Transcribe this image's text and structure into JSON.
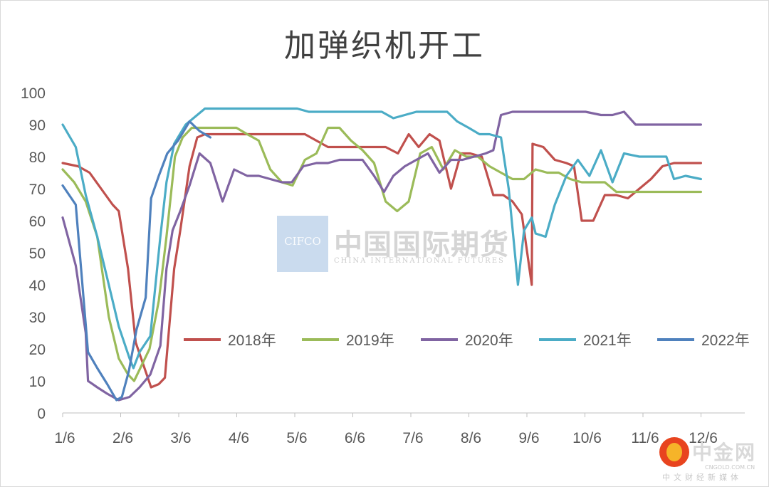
{
  "page": {
    "watermark": {
      "latin": "CIFCO",
      "chinese": "中国国际期货",
      "english": "CHINA INTERNATIONAL FUTURES"
    },
    "corner_logo": {
      "name": "中金网",
      "url": "CNGOLD.COM.CN",
      "tagline": "中文财经新媒体"
    }
  },
  "chart_data": {
    "type": "line",
    "title": "加弹织机开工",
    "xlabel": "",
    "ylabel": "",
    "x_ticks": [
      "1/6",
      "2/6",
      "3/6",
      "4/6",
      "5/6",
      "6/6",
      "7/6",
      "8/6",
      "9/6",
      "10/6",
      "11/6",
      "12/6"
    ],
    "y_ticks": [
      0,
      10,
      20,
      30,
      40,
      50,
      60,
      70,
      80,
      90,
      100
    ],
    "ylim": [
      0,
      100
    ],
    "x_unit": "week index (1/6 = week 0, one week per step)",
    "grid": false,
    "legend": {
      "position": "inside-lower-right"
    },
    "series": [
      {
        "name": "2018年",
        "color": "#c0504d",
        "values": [
          [
            0,
            78
          ],
          [
            2,
            77
          ],
          [
            3.5,
            75
          ],
          [
            5,
            70
          ],
          [
            6.5,
            65
          ],
          [
            7.3,
            63
          ],
          [
            8.5,
            45
          ],
          [
            9.5,
            22
          ],
          [
            10.5,
            15
          ],
          [
            11.5,
            8
          ],
          [
            12.5,
            9
          ],
          [
            13.3,
            11
          ],
          [
            14.5,
            45
          ],
          [
            15.3,
            57
          ],
          [
            16.5,
            77
          ],
          [
            17.5,
            86
          ],
          [
            18.5,
            87
          ],
          [
            19.5,
            87
          ],
          [
            20.5,
            87
          ],
          [
            22,
            87
          ],
          [
            24,
            87
          ],
          [
            26,
            87
          ],
          [
            28,
            87
          ],
          [
            30,
            87
          ],
          [
            31.5,
            87
          ],
          [
            33,
            85
          ],
          [
            34.5,
            83
          ],
          [
            36,
            83
          ],
          [
            38,
            83
          ],
          [
            40,
            83
          ],
          [
            42,
            83
          ],
          [
            43.6,
            81
          ],
          [
            45,
            87
          ],
          [
            46.3,
            83
          ],
          [
            47.7,
            87
          ],
          [
            49,
            85
          ],
          [
            50.5,
            70
          ],
          [
            51.8,
            81
          ],
          [
            53,
            81
          ],
          [
            54.5,
            80
          ],
          [
            56,
            68
          ],
          [
            57.3,
            68
          ],
          [
            58.5,
            66
          ],
          [
            59.7,
            62
          ],
          [
            61,
            40
          ],
          [
            61.1,
            84
          ],
          [
            62.5,
            83
          ],
          [
            64,
            79
          ],
          [
            65.5,
            78
          ],
          [
            66.5,
            77
          ],
          [
            67.5,
            60
          ],
          [
            69,
            60
          ],
          [
            70.5,
            68
          ],
          [
            72,
            68
          ],
          [
            73.5,
            67
          ],
          [
            75,
            70
          ],
          [
            76.5,
            73
          ],
          [
            78,
            77
          ],
          [
            79.5,
            78
          ],
          [
            81,
            78
          ],
          [
            83,
            78
          ]
        ]
      },
      {
        "name": "2019年",
        "color": "#9bbb59",
        "values": [
          [
            0,
            76
          ],
          [
            1.5,
            72
          ],
          [
            3,
            66
          ],
          [
            4.5,
            55
          ],
          [
            6,
            30
          ],
          [
            7.3,
            17
          ],
          [
            8.5,
            12
          ],
          [
            9.3,
            10
          ],
          [
            10.3,
            15
          ],
          [
            11.3,
            20
          ],
          [
            12.5,
            35
          ],
          [
            13.5,
            55
          ],
          [
            14.6,
            80
          ],
          [
            15.6,
            86
          ],
          [
            16.8,
            89
          ],
          [
            18,
            89
          ],
          [
            19.5,
            89
          ],
          [
            21,
            89
          ],
          [
            22.6,
            89
          ],
          [
            24,
            87
          ],
          [
            25.5,
            85
          ],
          [
            27,
            76
          ],
          [
            28.5,
            72
          ],
          [
            29.9,
            71
          ],
          [
            31.5,
            79
          ],
          [
            33,
            81
          ],
          [
            34.5,
            89
          ],
          [
            36,
            89
          ],
          [
            37.5,
            85
          ],
          [
            39,
            82
          ],
          [
            40.5,
            78
          ],
          [
            42,
            66
          ],
          [
            43.5,
            63
          ],
          [
            45,
            66
          ],
          [
            46.5,
            81
          ],
          [
            48,
            83
          ],
          [
            49.5,
            76
          ],
          [
            51,
            82
          ],
          [
            52.5,
            80
          ],
          [
            54,
            80
          ],
          [
            55.5,
            77
          ],
          [
            57,
            75
          ],
          [
            58.5,
            73
          ],
          [
            60,
            73
          ],
          [
            61.5,
            76
          ],
          [
            63,
            75
          ],
          [
            64.5,
            75
          ],
          [
            66,
            73
          ],
          [
            67.5,
            72
          ],
          [
            69,
            72
          ],
          [
            70.5,
            72
          ],
          [
            72,
            69
          ],
          [
            74,
            69
          ],
          [
            76,
            69
          ],
          [
            78,
            69
          ],
          [
            80,
            69
          ],
          [
            83,
            69
          ]
        ]
      },
      {
        "name": "2020年",
        "color": "#8064a2",
        "values": [
          [
            0,
            61
          ],
          [
            1.7,
            46
          ],
          [
            3,
            25
          ],
          [
            3.3,
            10
          ],
          [
            4.5,
            8
          ],
          [
            5.8,
            6
          ],
          [
            7.3,
            4
          ],
          [
            8.7,
            5
          ],
          [
            10,
            8
          ],
          [
            11.4,
            12
          ],
          [
            12.7,
            21
          ],
          [
            13.5,
            45
          ],
          [
            14.3,
            57
          ],
          [
            15.3,
            63
          ],
          [
            16.5,
            71
          ],
          [
            17.8,
            81
          ],
          [
            19.2,
            78
          ],
          [
            20.8,
            66
          ],
          [
            22.3,
            76
          ],
          [
            24,
            74
          ],
          [
            25.5,
            74
          ],
          [
            27,
            73
          ],
          [
            28.5,
            72
          ],
          [
            29.8,
            72
          ],
          [
            31.3,
            77
          ],
          [
            33,
            78
          ],
          [
            34.5,
            78
          ],
          [
            36,
            79
          ],
          [
            37.5,
            79
          ],
          [
            39,
            79
          ],
          [
            40.5,
            74
          ],
          [
            41.8,
            69
          ],
          [
            43,
            74
          ],
          [
            44.5,
            77
          ],
          [
            46,
            79
          ],
          [
            47.5,
            81
          ],
          [
            49,
            75
          ],
          [
            50.5,
            79
          ],
          [
            52,
            79
          ],
          [
            53.5,
            80
          ],
          [
            55,
            81
          ],
          [
            56,
            82
          ],
          [
            57,
            93
          ],
          [
            58.5,
            94
          ],
          [
            60,
            94
          ],
          [
            62,
            94
          ],
          [
            64,
            94
          ],
          [
            66,
            94
          ],
          [
            68,
            94
          ],
          [
            70,
            93
          ],
          [
            71.5,
            93
          ],
          [
            73,
            94
          ],
          [
            74.5,
            90
          ],
          [
            76,
            90
          ],
          [
            78,
            90
          ],
          [
            80,
            90
          ],
          [
            83,
            90
          ]
        ]
      },
      {
        "name": "2021年",
        "color": "#4bacc6",
        "values": [
          [
            0,
            90
          ],
          [
            1.7,
            83
          ],
          [
            3,
            68
          ],
          [
            4.5,
            55
          ],
          [
            6,
            40
          ],
          [
            7.3,
            27
          ],
          [
            8.7,
            17
          ],
          [
            9.2,
            14
          ],
          [
            10,
            19
          ],
          [
            11.4,
            24
          ],
          [
            12.7,
            55
          ],
          [
            13.5,
            72
          ],
          [
            14.5,
            84
          ],
          [
            16,
            90
          ],
          [
            17.5,
            93
          ],
          [
            18.5,
            95
          ],
          [
            20,
            95
          ],
          [
            22,
            95
          ],
          [
            24,
            95
          ],
          [
            26,
            95
          ],
          [
            28,
            95
          ],
          [
            30.5,
            95
          ],
          [
            32,
            94
          ],
          [
            34,
            94
          ],
          [
            36,
            94
          ],
          [
            38,
            94
          ],
          [
            40,
            94
          ],
          [
            41.5,
            94
          ],
          [
            43,
            92
          ],
          [
            44.5,
            93
          ],
          [
            46,
            94
          ],
          [
            48,
            94
          ],
          [
            50,
            94
          ],
          [
            51.3,
            91
          ],
          [
            52.8,
            89
          ],
          [
            54.2,
            87
          ],
          [
            55.5,
            87
          ],
          [
            57,
            86
          ],
          [
            58,
            70
          ],
          [
            59.2,
            40
          ],
          [
            60,
            57
          ],
          [
            61,
            61
          ],
          [
            61.5,
            56
          ],
          [
            62.8,
            55
          ],
          [
            64,
            65
          ],
          [
            65.5,
            74
          ],
          [
            67,
            79
          ],
          [
            68.5,
            74
          ],
          [
            70,
            82
          ],
          [
            71.5,
            72
          ],
          [
            73,
            81
          ],
          [
            75,
            80
          ],
          [
            77,
            80
          ],
          [
            78.5,
            80
          ],
          [
            79.5,
            73
          ],
          [
            81,
            74
          ],
          [
            83,
            73
          ]
        ]
      },
      {
        "name": "2022年",
        "color": "#4f81bd",
        "values": [
          [
            0,
            71
          ],
          [
            1.7,
            65
          ],
          [
            3.3,
            19
          ],
          [
            4.5,
            14
          ],
          [
            5.8,
            9
          ],
          [
            7,
            4
          ],
          [
            7.7,
            5
          ],
          [
            8.6,
            13
          ],
          [
            9.6,
            26
          ],
          [
            10.8,
            36
          ],
          [
            11.5,
            67
          ],
          [
            12.5,
            74
          ],
          [
            13.6,
            81
          ],
          [
            15,
            85
          ],
          [
            16.5,
            91
          ],
          [
            17.8,
            88
          ],
          [
            19.2,
            86
          ]
        ]
      }
    ]
  }
}
